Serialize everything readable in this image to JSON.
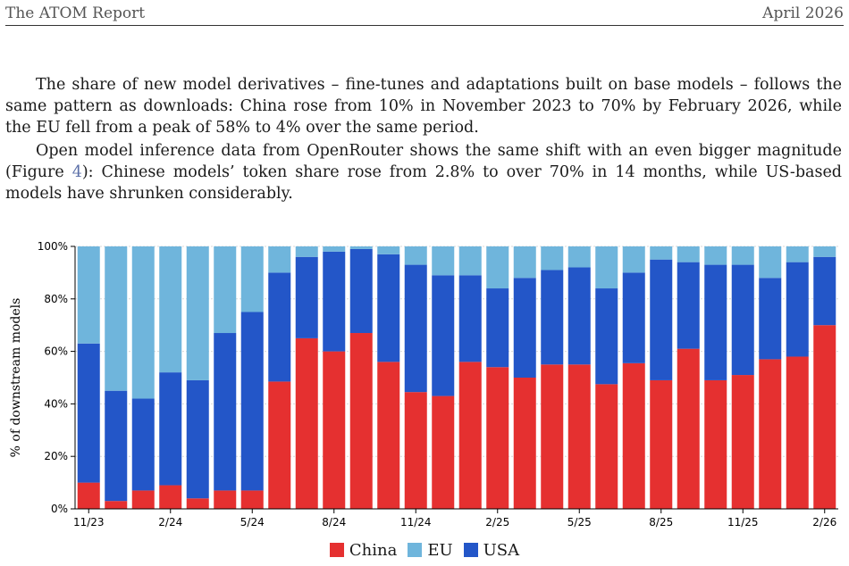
{
  "header": {
    "left": "The ATOM Report",
    "right": "April 2026"
  },
  "paragraphs": {
    "p1": "The share of new model derivatives – fine-tunes and adaptations built on base models – follows the same pattern as downloads: China rose from 10% in November 2023 to 70% by February 2026, while the EU fell from a peak of 58% to 4% over the same period.",
    "p2_before": "Open model inference data from OpenRouter shows the same shift with an even bigger magnitude (Figure ",
    "p2_ref": "4",
    "p2_after": "): Chinese models’ token share rose from 2.8% to over 70% in 14 months, while US-based models have shrunken considerably."
  },
  "colors": {
    "China": "#e53030",
    "EU": "#6fb5dc",
    "USA": "#2356c8"
  },
  "chart_data": {
    "type": "bar",
    "stacked": true,
    "ylabel": "% of downstream models",
    "ylim": [
      0,
      100
    ],
    "yticks": [
      "0%",
      "20%",
      "40%",
      "60%",
      "80%",
      "100%"
    ],
    "xtick_labels": [
      "11/23",
      "2/24",
      "5/24",
      "8/24",
      "11/24",
      "2/25",
      "5/25",
      "8/25",
      "11/25",
      "2/26"
    ],
    "categories": [
      "11/23",
      "12/23",
      "1/24",
      "2/24",
      "3/24",
      "4/24",
      "5/24",
      "6/24",
      "7/24",
      "8/24",
      "9/24",
      "10/24",
      "11/24",
      "12/24",
      "1/25",
      "2/25",
      "3/25",
      "4/25",
      "5/25",
      "6/25",
      "7/25",
      "8/25",
      "9/25",
      "10/25",
      "11/25",
      "12/25",
      "1/26",
      "2/26"
    ],
    "series": [
      {
        "name": "China",
        "values": [
          10,
          3,
          7,
          9,
          4,
          7,
          7,
          48.5,
          65,
          60,
          67,
          56,
          44.5,
          43,
          56,
          54,
          50,
          55,
          55,
          47.5,
          55.5,
          49,
          61,
          49,
          51,
          57,
          58,
          70
        ]
      },
      {
        "name": "USA",
        "values": [
          53,
          42,
          35,
          43,
          45,
          60,
          68,
          41.5,
          31,
          38,
          32,
          41,
          48.5,
          46,
          33,
          30,
          38,
          36,
          37,
          36.5,
          34.5,
          46,
          33,
          44,
          42,
          31,
          36,
          26
        ]
      },
      {
        "name": "EU",
        "values": [
          37,
          55,
          58,
          48,
          51,
          33,
          25,
          10,
          4,
          2,
          1,
          3,
          7,
          11,
          11,
          16,
          12,
          9,
          8,
          16,
          10,
          5,
          6,
          7,
          7,
          12,
          6,
          4
        ]
      }
    ],
    "grid": true,
    "legend_position": "bottom"
  }
}
